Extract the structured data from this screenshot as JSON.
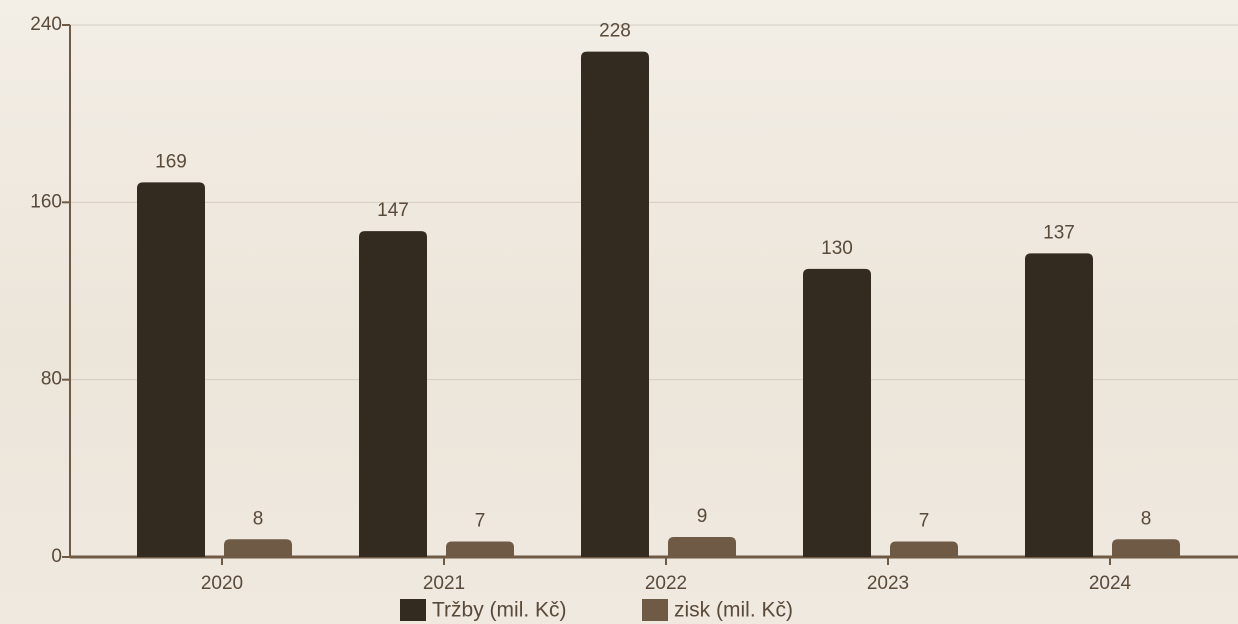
{
  "chart_data": {
    "type": "bar",
    "categories": [
      "2020",
      "2021",
      "2022",
      "2023",
      "2024"
    ],
    "series": [
      {
        "name": "Tržby (mil. Kč)",
        "color": "#332a20",
        "values": [
          169,
          147,
          228,
          130,
          137
        ]
      },
      {
        "name": "zisk (mil. Kč)",
        "color": "#6e5a45",
        "values": [
          8,
          7,
          9,
          7,
          8
        ]
      }
    ],
    "ylim": [
      0,
      240
    ],
    "yticks": [
      0,
      80,
      160,
      240
    ],
    "grid": true
  }
}
